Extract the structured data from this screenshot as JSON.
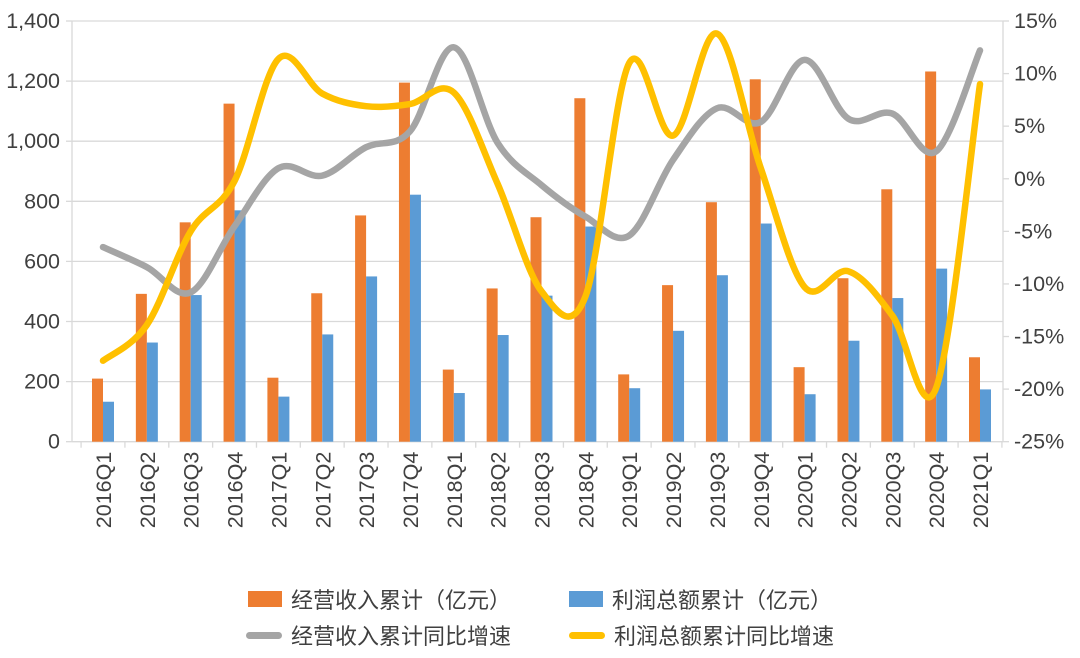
{
  "chart_data": {
    "type": "bar+line combo",
    "categories": [
      "2016Q1",
      "2016Q2",
      "2016Q3",
      "2016Q4",
      "2017Q1",
      "2017Q2",
      "2017Q3",
      "2017Q4",
      "2018Q1",
      "2018Q2",
      "2018Q3",
      "2018Q4",
      "2019Q1",
      "2019Q2",
      "2019Q3",
      "2019Q4",
      "2020Q1",
      "2020Q2",
      "2020Q3",
      "2020Q4",
      "2021Q1"
    ],
    "series": [
      {
        "name": "经营收入累计（亿元）",
        "type": "bar",
        "axis": "left",
        "color": "#ED7D31",
        "values": [
          210,
          492,
          730,
          1125,
          213,
          494,
          753,
          1195,
          240,
          510,
          747,
          1143,
          224,
          521,
          797,
          1206,
          248,
          544,
          840,
          1232,
          281
        ]
      },
      {
        "name": "利润总额累计（亿元）",
        "type": "bar",
        "axis": "left",
        "color": "#5B9BD5",
        "values": [
          133,
          330,
          488,
          770,
          150,
          357,
          550,
          822,
          162,
          355,
          486,
          716,
          178,
          369,
          554,
          726,
          158,
          336,
          478,
          576,
          174
        ]
      },
      {
        "name": "经营收入累计同比增速",
        "type": "line",
        "axis": "right",
        "color": "#A5A5A5",
        "values": [
          -6.5,
          -8.4,
          -10.8,
          -4.5,
          1.0,
          0.3,
          3.0,
          4.5,
          12.5,
          3.4,
          -0.6,
          -3.6,
          -5.4,
          1.8,
          6.7,
          5.4,
          11.3,
          5.7,
          6.2,
          2.6,
          12.2
        ]
      },
      {
        "name": "利润总额累计同比增速",
        "type": "line",
        "axis": "right",
        "color": "#FFC000",
        "values": [
          -17.3,
          -13.9,
          -5.0,
          -0.2,
          11.4,
          8.1,
          6.9,
          7.1,
          8.2,
          -0.5,
          -10.7,
          -11.2,
          11.0,
          4.1,
          13.8,
          1.0,
          -10.3,
          -8.8,
          -13.0,
          -19.9,
          9.0
        ]
      }
    ],
    "left_axis": {
      "min": 0,
      "max": 1400,
      "step": 200,
      "labels": [
        "0",
        "200",
        "400",
        "600",
        "800",
        "1,000",
        "1,200",
        "1,400"
      ]
    },
    "right_axis": {
      "min": -25,
      "max": 15,
      "step": 5,
      "labels": [
        "-25%",
        "-20%",
        "-15%",
        "-10%",
        "-5%",
        "0%",
        "5%",
        "10%",
        "15%"
      ]
    },
    "grid": "horizontal",
    "legend_position": "bottom",
    "colors": {
      "grid": "#D9D9D9",
      "axis_text": "#404040"
    }
  }
}
